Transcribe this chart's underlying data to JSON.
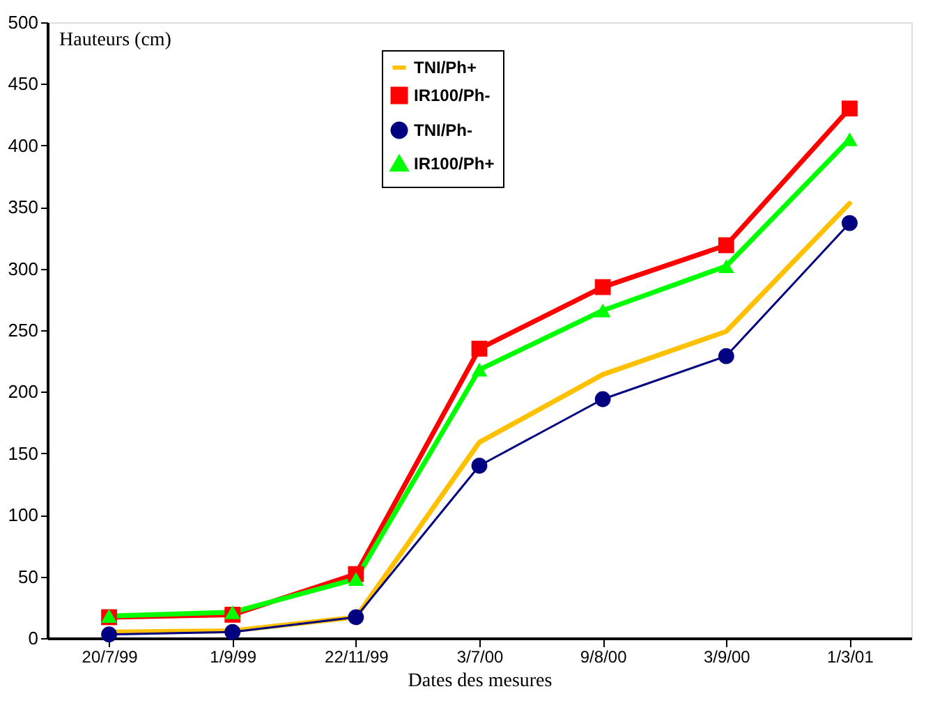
{
  "chart_data": {
    "type": "line",
    "ylabel": "Hauteurs (cm)",
    "xlabel": "Dates des mesures",
    "categories": [
      "20/7/99",
      "1/9/99",
      "22/11/99",
      "3/7/00",
      "9/8/00",
      "3/9/00",
      "1/3/01"
    ],
    "ylim": [
      0,
      500
    ],
    "yticks": [
      0,
      50,
      100,
      150,
      200,
      250,
      300,
      350,
      400,
      450,
      500
    ],
    "grid": false,
    "legend": "top",
    "series": [
      {
        "name": "TNI/Ph+",
        "color": "#ffc000",
        "marker": "none",
        "values": [
          5,
          6,
          17,
          159,
          214,
          249,
          353
        ]
      },
      {
        "name": "IR100/Ph-",
        "color": "#ff0000",
        "marker": "square",
        "values": [
          17,
          19,
          52,
          235,
          285,
          319,
          430
        ]
      },
      {
        "name": "TNI/Ph-",
        "color": "#000080",
        "marker": "circle",
        "values": [
          3,
          5,
          17,
          140,
          194,
          229,
          337
        ]
      },
      {
        "name": "IR100/Ph+",
        "color": "#00ff00",
        "marker": "triangle",
        "values": [
          18,
          21,
          48,
          218,
          266,
          302,
          405
        ]
      }
    ]
  }
}
